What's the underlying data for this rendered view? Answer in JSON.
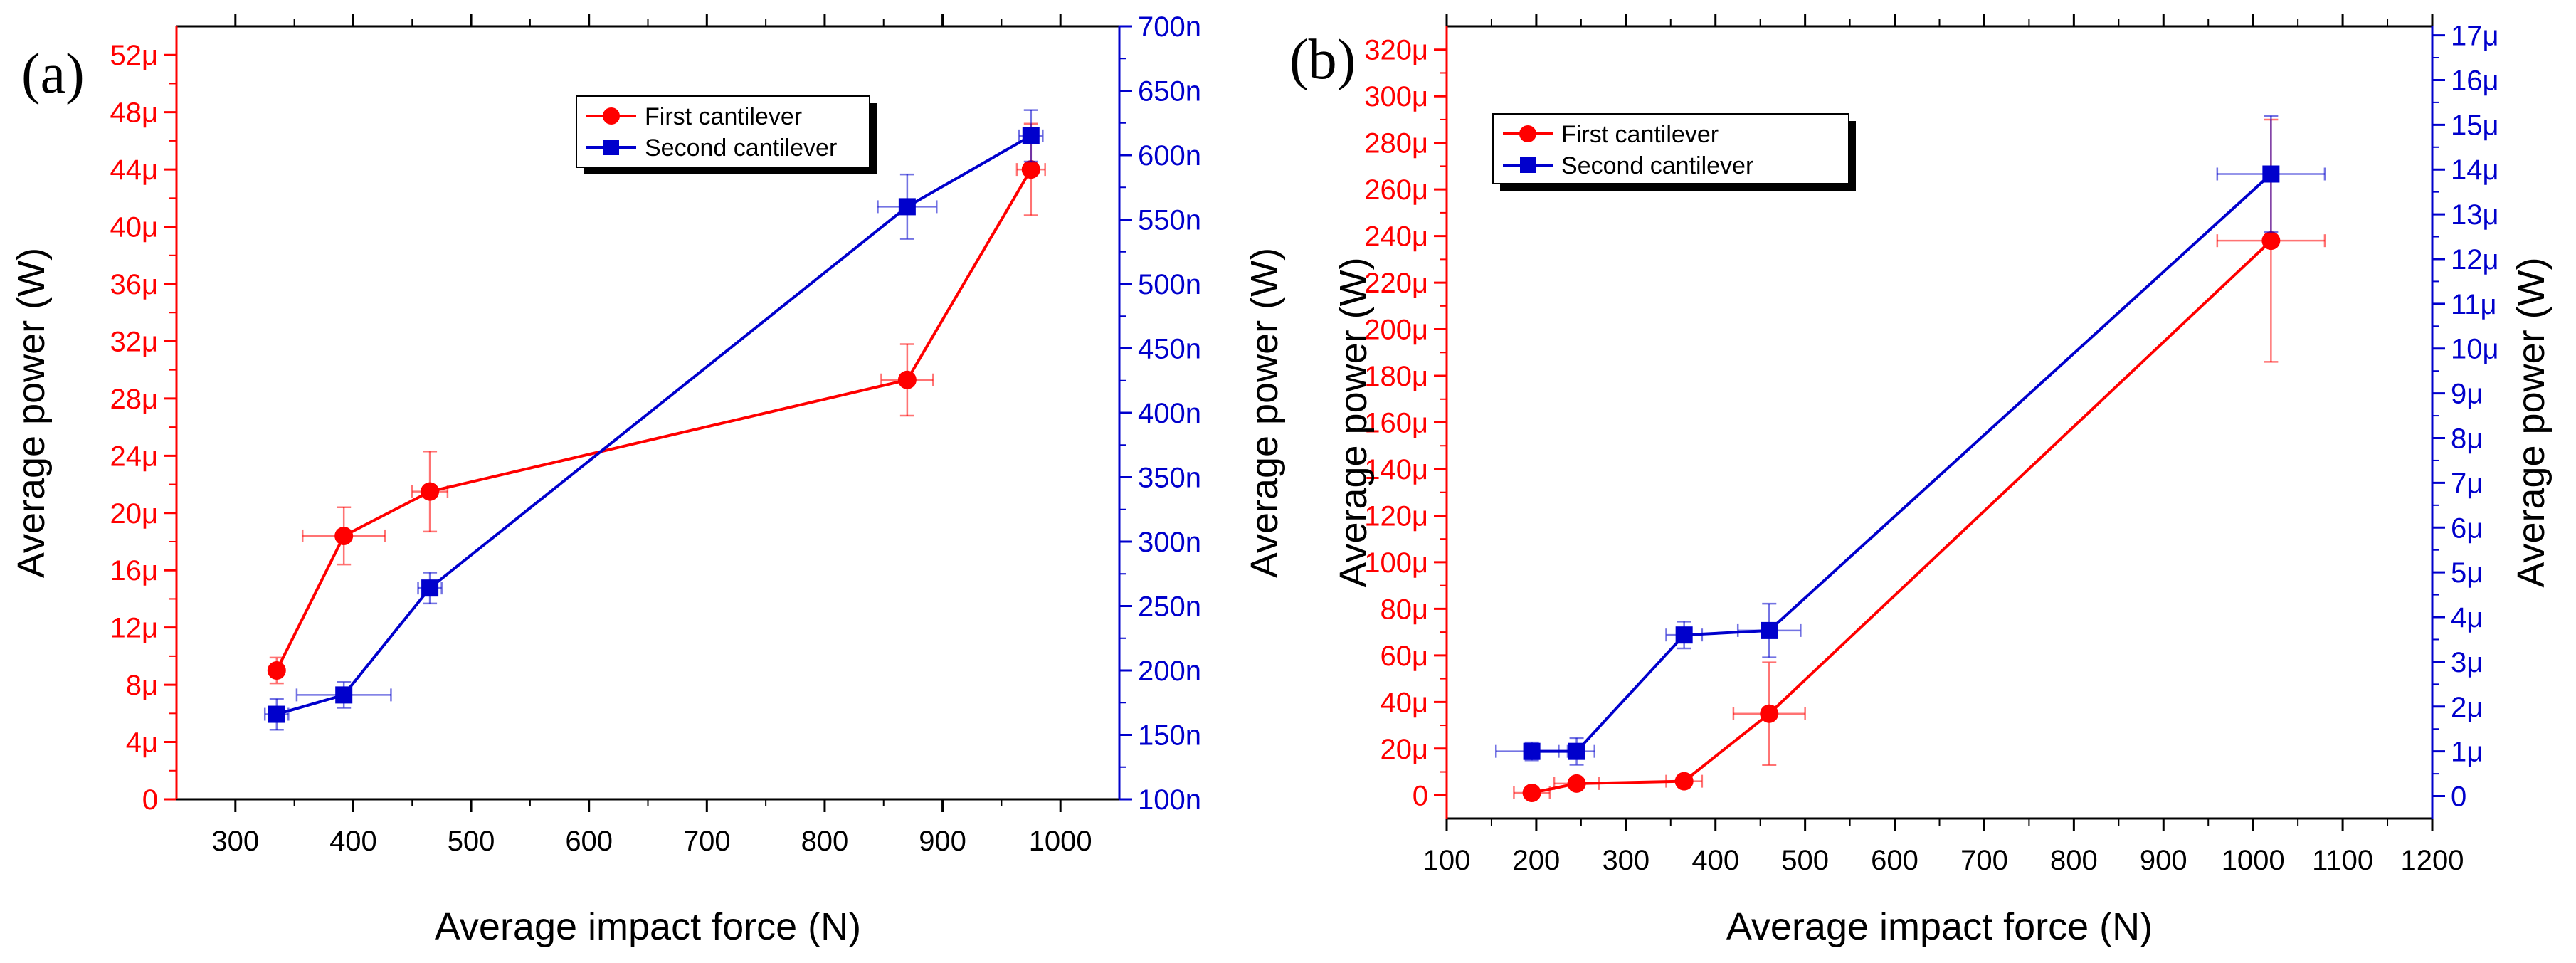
{
  "colors": {
    "first": "#ff0000",
    "second": "#0000cc",
    "axis": "#000000",
    "legend_shadow": "#000000"
  },
  "chart_data": [
    {
      "panel": "(a)",
      "type": "line",
      "xlabel": "Average impact force (N)",
      "ylabel_left": "Average power (W)",
      "ylabel_right": "Average power (W)",
      "xlim": [
        250,
        1050
      ],
      "xticks": [
        300,
        400,
        500,
        600,
        700,
        800,
        900,
        1000
      ],
      "xtick_labels": [
        "300",
        "400",
        "500",
        "600",
        "700",
        "800",
        "900",
        "1000"
      ],
      "ylim_left": [
        0,
        54
      ],
      "yticks_left": [
        0,
        4,
        8,
        12,
        16,
        20,
        24,
        28,
        32,
        36,
        40,
        44,
        48,
        52
      ],
      "ytick_labels_left": [
        "0",
        "4μ",
        "8μ",
        "12μ",
        "16μ",
        "20μ",
        "24μ",
        "28μ",
        "32μ",
        "36μ",
        "40μ",
        "44μ",
        "48μ",
        "52μ"
      ],
      "ylim_right": [
        100,
        700
      ],
      "yticks_right": [
        100,
        150,
        200,
        250,
        300,
        350,
        400,
        450,
        500,
        550,
        600,
        650,
        700
      ],
      "ytick_labels_right": [
        "100n",
        "150n",
        "200n",
        "250n",
        "300n",
        "350n",
        "400n",
        "450n",
        "500n",
        "550n",
        "600n",
        "650n",
        "700n"
      ],
      "legend_position": "top-right",
      "series": [
        {
          "name": "First cantilever",
          "axis": "left",
          "marker": "circle",
          "x": [
            335,
            392,
            465,
            870,
            975
          ],
          "y": [
            9.0,
            18.4,
            21.5,
            29.3,
            44.0
          ],
          "xerr": [
            0,
            35,
            15,
            22,
            12
          ],
          "yerr": [
            0.9,
            2.0,
            2.8,
            2.5,
            3.2
          ]
        },
        {
          "name": "Second cantilever",
          "axis": "right",
          "marker": "square",
          "x": [
            335,
            392,
            465,
            870,
            975
          ],
          "y": [
            166,
            181,
            264,
            560,
            615
          ],
          "xerr": [
            10,
            40,
            10,
            25,
            10
          ],
          "yerr": [
            12,
            10,
            12,
            25,
            20
          ]
        }
      ]
    },
    {
      "panel": "(b)",
      "type": "line",
      "xlabel": "Average impact force (N)",
      "ylabel_left": "Average power (W)",
      "ylabel_right": "Average power (W)",
      "xlim": [
        100,
        1200
      ],
      "xticks": [
        100,
        200,
        300,
        400,
        500,
        600,
        700,
        800,
        900,
        1000,
        1100,
        1200
      ],
      "xtick_labels": [
        "100",
        "200",
        "300",
        "400",
        "500",
        "600",
        "700",
        "800",
        "900",
        "1000",
        "1100",
        "1200"
      ],
      "ylim_left": [
        -10,
        330
      ],
      "yticks_left": [
        0,
        20,
        40,
        60,
        80,
        100,
        120,
        140,
        160,
        180,
        200,
        220,
        240,
        260,
        280,
        300,
        320
      ],
      "ytick_labels_left": [
        "0",
        "20μ",
        "40μ",
        "60μ",
        "80μ",
        "100μ",
        "120μ",
        "140μ",
        "160μ",
        "180μ",
        "200μ",
        "220μ",
        "240μ",
        "260μ",
        "280μ",
        "300μ",
        "320μ"
      ],
      "ylim_right": [
        -0.5,
        17.2
      ],
      "yticks_right": [
        0,
        1,
        2,
        3,
        4,
        5,
        6,
        7,
        8,
        9,
        10,
        11,
        12,
        13,
        14,
        15,
        16,
        17
      ],
      "ytick_labels_right": [
        "0",
        "1μ",
        "2μ",
        "3μ",
        "4μ",
        "5μ",
        "6μ",
        "7μ",
        "8μ",
        "9μ",
        "10μ",
        "11μ",
        "12μ",
        "13μ",
        "14μ",
        "15μ",
        "16μ",
        "17μ"
      ],
      "legend_position": "top-left",
      "series": [
        {
          "name": "First cantilever",
          "axis": "left",
          "marker": "circle",
          "x": [
            195,
            245,
            365,
            460,
            1020
          ],
          "y": [
            1,
            5,
            6,
            35,
            238
          ],
          "xerr": [
            20,
            25,
            20,
            40,
            60
          ],
          "yerr": [
            2,
            2,
            2,
            22,
            52
          ]
        },
        {
          "name": "Second cantilever",
          "axis": "right",
          "marker": "square",
          "x": [
            195,
            245,
            365,
            460,
            1020
          ],
          "y": [
            1.0,
            1.0,
            3.6,
            3.7,
            13.9
          ],
          "xerr": [
            40,
            20,
            20,
            35,
            60
          ],
          "yerr": [
            0.2,
            0.3,
            0.3,
            0.6,
            1.3
          ]
        }
      ]
    }
  ]
}
